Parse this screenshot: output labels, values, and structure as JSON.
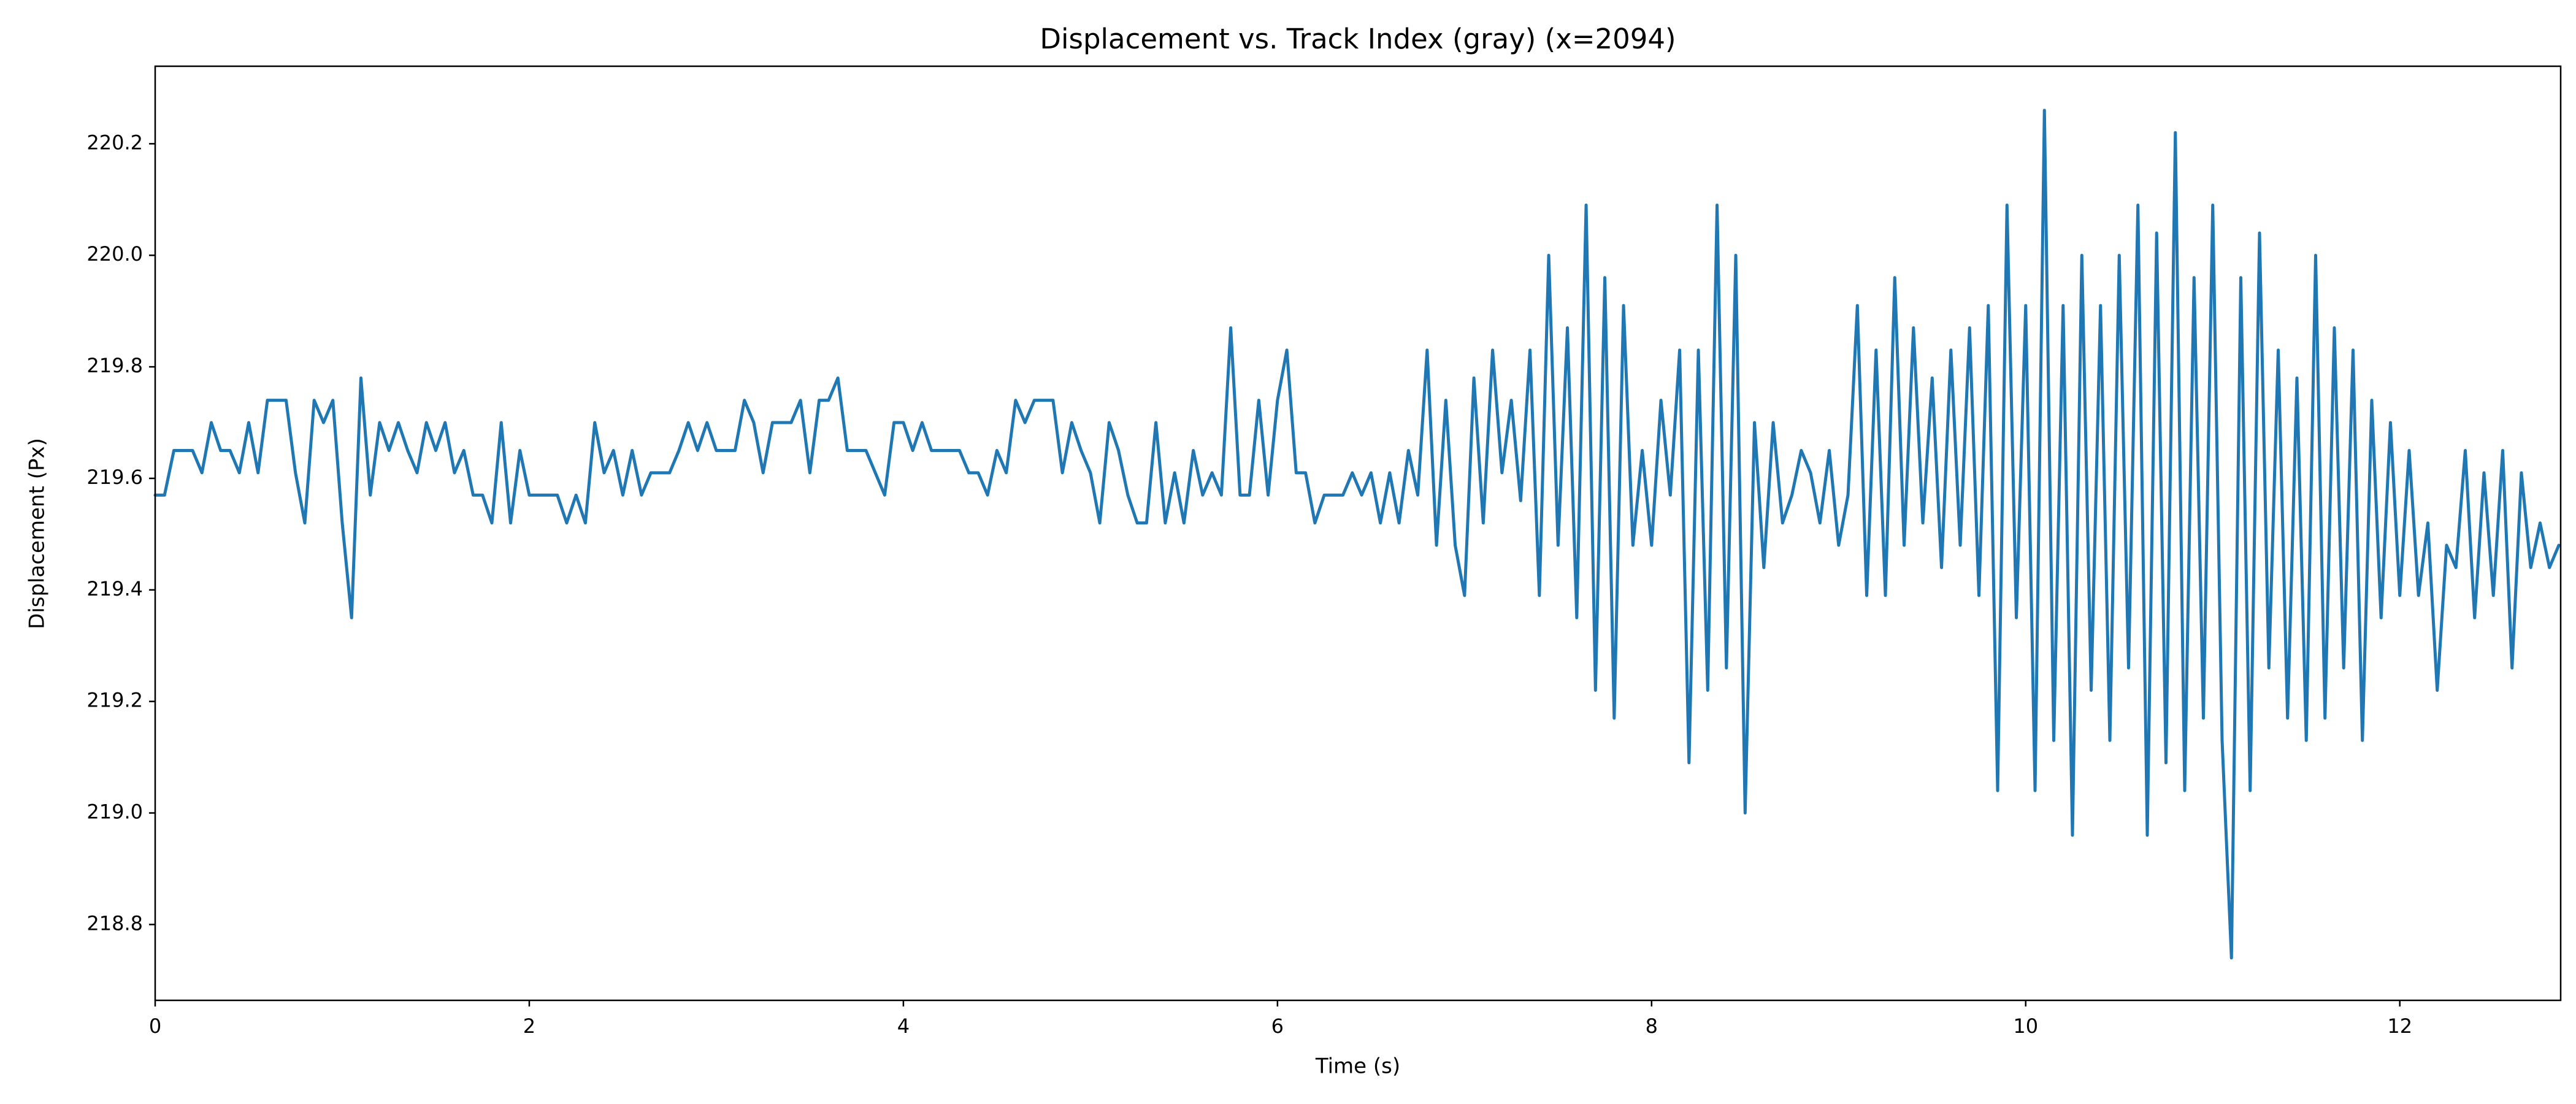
{
  "chart_data": {
    "type": "line",
    "title": "Displacement vs. Track Index (gray) (x=2094)",
    "x_label": "Time (s)",
    "y_label": "Displacement (Px)",
    "color": "#1f77b4",
    "xlim": [
      0,
      12.86
    ],
    "ylim": [
      218.664,
      220.339
    ],
    "xticks": [
      0,
      2,
      4,
      6,
      8,
      10,
      12
    ],
    "yticks": [
      218.8,
      {
        "value": 219,
        "label": "219.0"
      },
      219.2,
      219.4,
      219.6,
      219.8,
      {
        "value": 220,
        "label": "220.0"
      },
      220.2
    ],
    "grid": false,
    "x": [
      0,
      0.05,
      0.1,
      0.15,
      0.2,
      0.25,
      0.3,
      0.35,
      0.4,
      0.45,
      0.5,
      0.55,
      0.6,
      0.65,
      0.7,
      0.75,
      0.8,
      0.85,
      0.9,
      0.95,
      1,
      1.05,
      1.1,
      1.15,
      1.2,
      1.25,
      1.3,
      1.35,
      1.4,
      1.45,
      1.5,
      1.55,
      1.6,
      1.65,
      1.7,
      1.75,
      1.8,
      1.85,
      1.9,
      1.95,
      2,
      2.05,
      2.1,
      2.15,
      2.2,
      2.25,
      2.3,
      2.35,
      2.4,
      2.45,
      2.5,
      2.55,
      2.6,
      2.65,
      2.7,
      2.75,
      2.8,
      2.85,
      2.9,
      2.95,
      3,
      3.05,
      3.1,
      3.15,
      3.2,
      3.25,
      3.3,
      3.35,
      3.4,
      3.45,
      3.5,
      3.55,
      3.6,
      3.65,
      3.7,
      3.75,
      3.8,
      3.85,
      3.9,
      3.95,
      4,
      4.05,
      4.1,
      4.15,
      4.2,
      4.25,
      4.3,
      4.35,
      4.4,
      4.45,
      4.5,
      4.55,
      4.6,
      4.65,
      4.7,
      4.75,
      4.8,
      4.85,
      4.9,
      4.95,
      5,
      5.05,
      5.1,
      5.15,
      5.2,
      5.25,
      5.3,
      5.35,
      5.4,
      5.45,
      5.5,
      5.55,
      5.6,
      5.65,
      5.7,
      5.75,
      5.8,
      5.85,
      5.9,
      5.95,
      6,
      6.05,
      6.1,
      6.15,
      6.2,
      6.25,
      6.3,
      6.35,
      6.4,
      6.45,
      6.5,
      6.55,
      6.6,
      6.65,
      6.7,
      6.75,
      6.8,
      6.85,
      6.9,
      6.95,
      7,
      7.05,
      7.1,
      7.15,
      7.2,
      7.25,
      7.3,
      7.35,
      7.4,
      7.45,
      7.5,
      7.55,
      7.6,
      7.65,
      7.7,
      7.75,
      7.8,
      7.85,
      7.9,
      7.95,
      8,
      8.05,
      8.1,
      8.15,
      8.2,
      8.25,
      8.3,
      8.35,
      8.4,
      8.45,
      8.5,
      8.55,
      8.6,
      8.65,
      8.7,
      8.75,
      8.8,
      8.85,
      8.9,
      8.95,
      9,
      9.05,
      9.1,
      9.15,
      9.2,
      9.25,
      9.3,
      9.35,
      9.4,
      9.45,
      9.5,
      9.55,
      9.6,
      9.65,
      9.7,
      9.75,
      9.8,
      9.85,
      9.9,
      9.95,
      10,
      10.05,
      10.1,
      10.15,
      10.2,
      10.25,
      10.3,
      10.35,
      10.4,
      10.45,
      10.5,
      10.55,
      10.6,
      10.65,
      10.7,
      10.75,
      10.8,
      10.85,
      10.9,
      10.95,
      11,
      11.05,
      11.1,
      11.15,
      11.2,
      11.25,
      11.3,
      11.35,
      11.4,
      11.45,
      11.5,
      11.55,
      11.6,
      11.65,
      11.7,
      11.75,
      11.8,
      11.85,
      11.9,
      11.95,
      12,
      12.05,
      12.1,
      12.15,
      12.2,
      12.25,
      12.3,
      12.35,
      12.4,
      12.45,
      12.5,
      12.55,
      12.6,
      12.65,
      12.7,
      12.75,
      12.8,
      12.85
    ],
    "values": [
      219.57,
      219.57,
      219.65,
      219.65,
      219.65,
      219.61,
      219.7,
      219.65,
      219.65,
      219.61,
      219.7,
      219.61,
      219.74,
      219.74,
      219.74,
      219.61,
      219.52,
      219.74,
      219.7,
      219.74,
      219.52,
      219.35,
      219.78,
      219.57,
      219.7,
      219.65,
      219.7,
      219.65,
      219.61,
      219.7,
      219.65,
      219.7,
      219.61,
      219.65,
      219.57,
      219.57,
      219.52,
      219.7,
      219.52,
      219.65,
      219.57,
      219.57,
      219.57,
      219.57,
      219.52,
      219.57,
      219.52,
      219.7,
      219.61,
      219.65,
      219.57,
      219.65,
      219.57,
      219.61,
      219.61,
      219.61,
      219.65,
      219.7,
      219.65,
      219.7,
      219.65,
      219.65,
      219.65,
      219.74,
      219.7,
      219.61,
      219.7,
      219.7,
      219.7,
      219.74,
      219.61,
      219.74,
      219.74,
      219.78,
      219.65,
      219.65,
      219.65,
      219.61,
      219.57,
      219.7,
      219.7,
      219.65,
      219.7,
      219.65,
      219.65,
      219.65,
      219.65,
      219.61,
      219.61,
      219.57,
      219.65,
      219.61,
      219.74,
      219.7,
      219.74,
      219.74,
      219.74,
      219.61,
      219.7,
      219.65,
      219.61,
      219.52,
      219.7,
      219.65,
      219.57,
      219.52,
      219.52,
      219.7,
      219.52,
      219.61,
      219.52,
      219.65,
      219.57,
      219.61,
      219.57,
      219.87,
      219.57,
      219.57,
      219.74,
      219.57,
      219.74,
      219.83,
      219.61,
      219.61,
      219.52,
      219.57,
      219.57,
      219.57,
      219.61,
      219.57,
      219.61,
      219.52,
      219.61,
      219.52,
      219.65,
      219.57,
      219.83,
      219.48,
      219.74,
      219.48,
      219.39,
      219.78,
      219.52,
      219.83,
      219.61,
      219.74,
      219.56,
      219.83,
      219.39,
      220,
      219.48,
      219.87,
      219.35,
      220.09,
      219.22,
      219.96,
      219.17,
      219.91,
      219.48,
      219.65,
      219.48,
      219.74,
      219.57,
      219.83,
      219.09,
      219.83,
      219.22,
      220.09,
      219.26,
      220,
      219,
      219.7,
      219.44,
      219.7,
      219.52,
      219.57,
      219.65,
      219.61,
      219.52,
      219.65,
      219.48,
      219.57,
      219.91,
      219.39,
      219.83,
      219.39,
      219.96,
      219.48,
      219.87,
      219.52,
      219.78,
      219.44,
      219.83,
      219.48,
      219.87,
      219.39,
      219.91,
      219.04,
      220.09,
      219.35,
      219.91,
      219.04,
      220.26,
      219.13,
      219.91,
      218.96,
      220,
      219.22,
      219.91,
      219.13,
      220,
      219.26,
      220.09,
      218.96,
      220.04,
      219.09,
      220.22,
      219.04,
      219.96,
      219.17,
      220.09,
      219.13,
      218.74,
      219.96,
      219.04,
      220.04,
      219.26,
      219.83,
      219.17,
      219.78,
      219.13,
      220,
      219.17,
      219.87,
      219.26,
      219.83,
      219.13,
      219.74,
      219.35,
      219.7,
      219.39,
      219.65,
      219.39,
      219.52,
      219.22,
      219.48,
      219.44,
      219.65,
      219.35,
      219.61,
      219.39,
      219.65,
      219.26,
      219.61,
      219.44,
      219.52,
      219.44,
      219.48
    ]
  }
}
